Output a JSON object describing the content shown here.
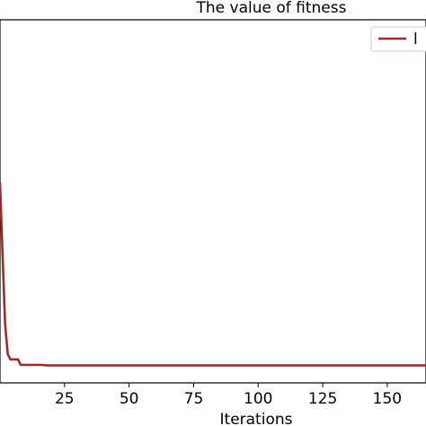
{
  "chart_data": {
    "type": "line",
    "title": "The value of fitness",
    "xlabel": "Iterations",
    "ylabel": "",
    "xlim": [
      0,
      165
    ],
    "ylim": [
      0,
      1
    ],
    "grid": false,
    "legend_position": "top-right",
    "x_ticks": [
      25,
      50,
      75,
      100,
      125,
      150
    ],
    "series": [
      {
        "name": "l",
        "color": "#9b2c2c",
        "x": [
          0,
          1,
          2,
          3,
          4,
          5,
          6,
          7,
          8,
          10,
          12,
          14,
          16,
          18,
          20,
          30,
          40,
          60,
          80,
          100,
          120,
          140,
          165
        ],
        "y": [
          0.67,
          0.4,
          0.15,
          0.04,
          0.02,
          0.02,
          0.02,
          0.02,
          0.0,
          0.0,
          0.0,
          0.0,
          0.0,
          -0.002,
          -0.002,
          -0.002,
          -0.002,
          -0.002,
          -0.002,
          -0.002,
          -0.002,
          -0.002,
          -0.002
        ]
      }
    ]
  }
}
